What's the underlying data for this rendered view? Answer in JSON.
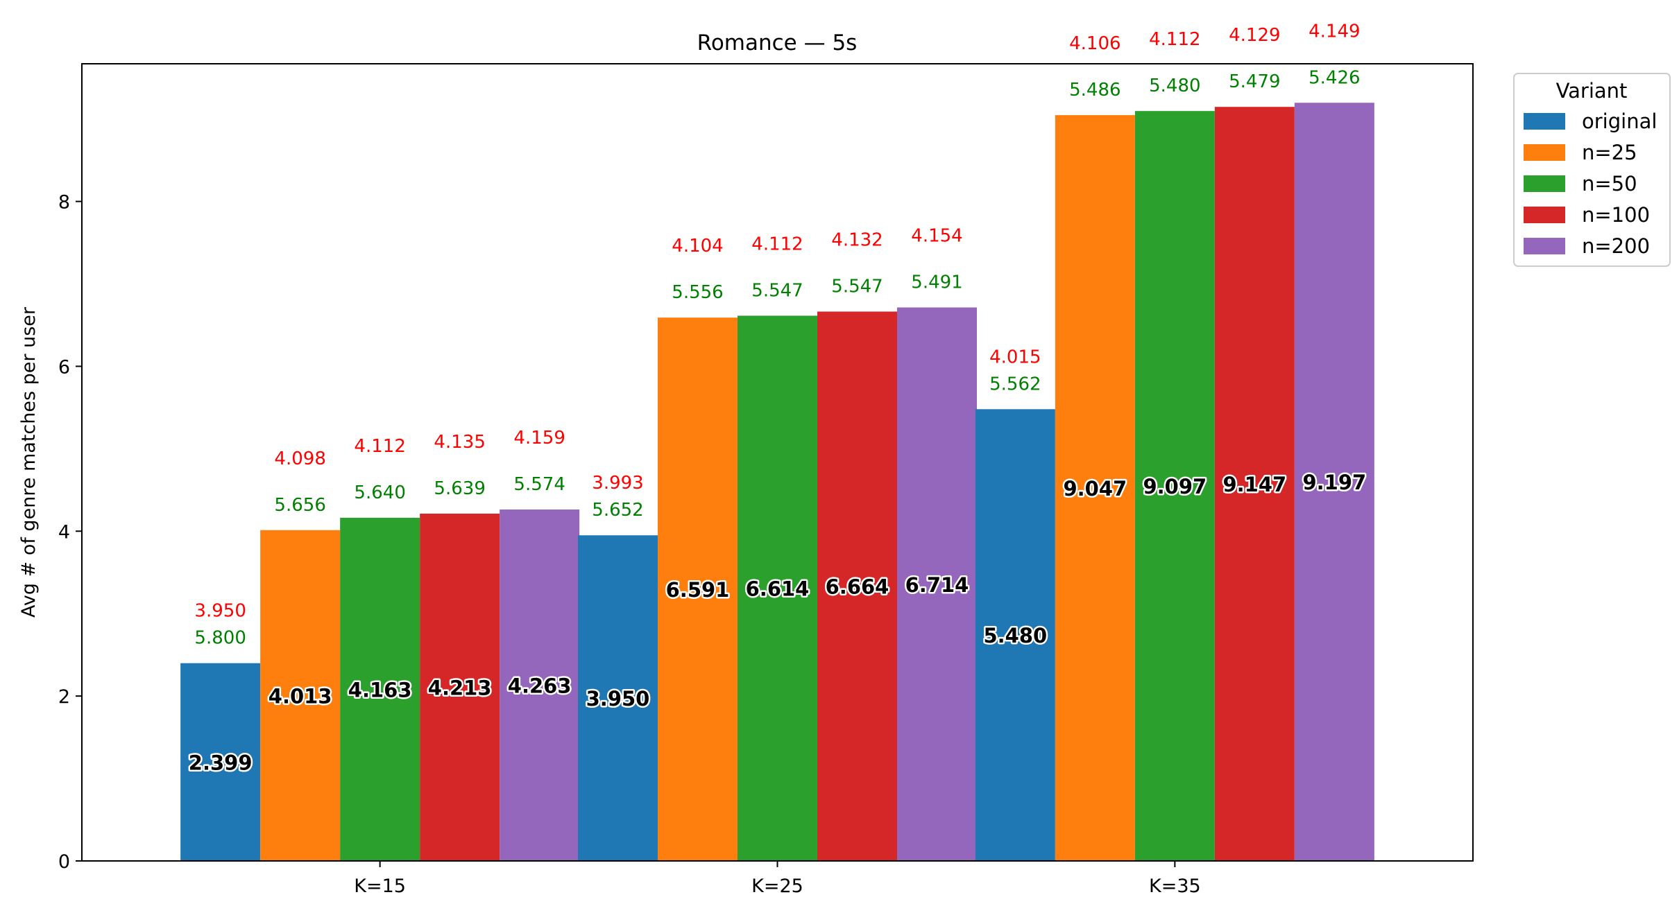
{
  "chart_data": {
    "type": "bar",
    "title": "Romance — 5s",
    "xlabel": "",
    "ylabel": "Avg # of genre matches per user",
    "ylim": [
      0,
      9.67
    ],
    "yticks": [
      0,
      2,
      4,
      6,
      8
    ],
    "categories": [
      "K=15",
      "K=25",
      "K=35"
    ],
    "legend": {
      "title": "Variant",
      "placement": "outside-right-top"
    },
    "grid": false,
    "series": [
      {
        "name": "original",
        "color": "#1f77b4",
        "values": [
          2.399,
          3.95,
          5.48
        ],
        "green_labels": [
          "5.800",
          "5.652",
          "5.562"
        ],
        "red_labels": [
          "3.950",
          "3.993",
          "4.015"
        ]
      },
      {
        "name": "n=25",
        "color": "#ff7f0e",
        "values": [
          4.013,
          6.591,
          9.047
        ],
        "green_labels": [
          "5.656",
          "5.556",
          "5.486"
        ],
        "red_labels": [
          "4.098",
          "4.104",
          "4.106"
        ]
      },
      {
        "name": "n=50",
        "color": "#2ca02c",
        "values": [
          4.163,
          6.614,
          9.097
        ],
        "green_labels": [
          "5.640",
          "5.547",
          "5.480"
        ],
        "red_labels": [
          "4.112",
          "4.112",
          "4.112"
        ]
      },
      {
        "name": "n=100",
        "color": "#d62728",
        "values": [
          4.213,
          6.664,
          9.147
        ],
        "green_labels": [
          "5.639",
          "5.547",
          "5.479"
        ],
        "red_labels": [
          "4.135",
          "4.132",
          "4.129"
        ]
      },
      {
        "name": "n=200",
        "color": "#9467bd",
        "values": [
          4.263,
          6.714,
          9.197
        ],
        "green_labels": [
          "5.574",
          "5.491",
          "5.426"
        ],
        "red_labels": [
          "4.159",
          "4.154",
          "4.149"
        ]
      }
    ]
  }
}
